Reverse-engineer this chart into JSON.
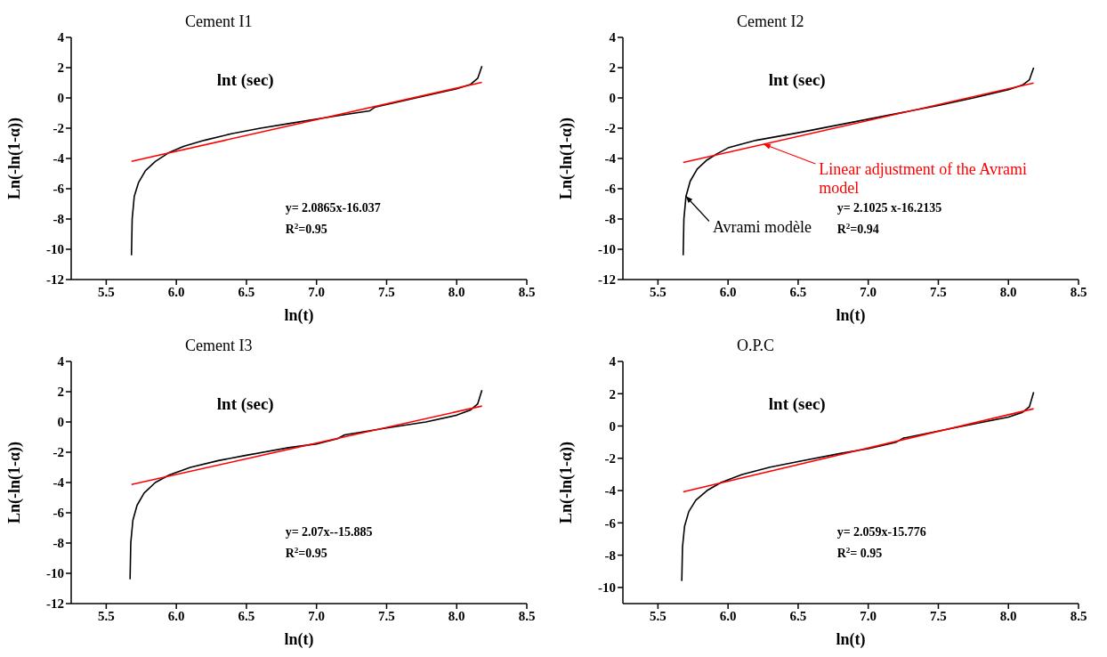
{
  "chart_data": [
    {
      "type": "line",
      "title": "Cement I1",
      "xlabel": "ln(t)",
      "ylabel": "Ln(-ln(1-α))",
      "xlim": [
        5.25,
        8.5
      ],
      "xticks": [
        5.5,
        {
          "value": 6,
          "label": "6.0"
        },
        6.5,
        {
          "value": 7,
          "label": "7.0"
        },
        7.5,
        {
          "value": 8,
          "label": "8.0"
        },
        8.5
      ],
      "ylim": [
        -12,
        4
      ],
      "yticks": [
        -12,
        -10,
        -8,
        -6,
        -4,
        -2,
        0,
        2,
        4
      ],
      "marker": "none",
      "line_style": "solid",
      "annotations": [
        "lnt (sec)",
        "y= 2.0865x-16.037",
        "R$^{2}$=0.95"
      ],
      "series": [
        {
          "color": "#000000",
          "x": [
            5.68,
            5.685,
            5.7,
            5.73,
            5.78,
            5.85,
            5.95,
            6.05,
            6.2,
            6.4,
            6.6,
            6.8,
            7.0,
            7.2,
            7.38,
            7.42,
            7.8,
            8.0,
            8.1,
            8.15,
            8.18
          ],
          "values": [
            -10.4,
            -8,
            -6.5,
            -5.6,
            -4.8,
            -4.2,
            -3.6,
            -3.2,
            -2.8,
            -2.35,
            -2,
            -1.7,
            -1.4,
            -1.1,
            -0.85,
            -0.6,
            0.2,
            0.6,
            0.9,
            1.3,
            2.1
          ]
        },
        {
          "color": "#ff0000",
          "x": [
            5.68,
            8.18
          ],
          "values": [
            -4.19,
            1.03
          ]
        }
      ]
    },
    {
      "type": "line",
      "title": "Cement I2",
      "xlabel": "ln(t)",
      "ylabel": "Ln(-ln(1-α))",
      "xlim": [
        5.25,
        8.5
      ],
      "xticks": [
        5.5,
        {
          "value": 6,
          "label": "6.0"
        },
        6.5,
        {
          "value": 7,
          "label": "7.0"
        },
        7.5,
        {
          "value": 8,
          "label": "8.0"
        },
        8.5
      ],
      "ylim": [
        -12,
        4
      ],
      "yticks": [
        -12,
        -10,
        -8,
        -6,
        -4,
        -2,
        0,
        2,
        4
      ],
      "marker": "none",
      "line_style": "solid",
      "annotations": [
        "lnt (sec)",
        "y= 2.1025 x-16.2135",
        "R$^{2}$=0.94"
      ],
      "series": [
        {
          "name": "Avrami modèle",
          "color": "#000000",
          "x": [
            5.68,
            5.685,
            5.7,
            5.73,
            5.78,
            5.85,
            5.92,
            6.0,
            6.2,
            6.5,
            7.5,
            7.75,
            8.0,
            8.1,
            8.15,
            8.18
          ],
          "values": [
            -10.4,
            -8,
            -6.5,
            -5.5,
            -4.7,
            -4.1,
            -3.7,
            -3.3,
            -2.8,
            -2.3,
            -0.5,
            0,
            0.55,
            0.85,
            1.2,
            2
          ]
        },
        {
          "name": "Linear adjustment of the Avrami model",
          "color": "#ff0000",
          "x": [
            5.68,
            8.18
          ],
          "values": [
            -4.27,
            0.99
          ]
        }
      ]
    },
    {
      "type": "line",
      "title": "Cement I3",
      "xlabel": "ln(t)",
      "ylabel": "Ln(-ln(1-α))",
      "xlim": [
        5.25,
        8.5
      ],
      "xticks": [
        5.5,
        {
          "value": 6,
          "label": "6.0"
        },
        6.5,
        {
          "value": 7,
          "label": "7.0"
        },
        7.5,
        {
          "value": 8,
          "label": "8.0"
        },
        8.5
      ],
      "ylim": [
        -12,
        4
      ],
      "yticks": [
        -12,
        -10,
        -8,
        -6,
        -4,
        -2,
        0,
        2,
        4
      ],
      "marker": "none",
      "line_style": "solid",
      "annotations": [
        "lnt (sec)",
        "y= 2.07x--15.885",
        "R$^{2}$=0.95"
      ],
      "series": [
        {
          "color": "#000000",
          "x": [
            5.67,
            5.675,
            5.69,
            5.72,
            5.77,
            5.85,
            5.95,
            6.1,
            6.3,
            6.5,
            6.8,
            7.0,
            7.15,
            7.2,
            7.5,
            7.78,
            8.0,
            8.1,
            8.15,
            8.18
          ],
          "values": [
            -10.4,
            -8,
            -6.5,
            -5.5,
            -4.7,
            -4.0,
            -3.5,
            -3.0,
            -2.55,
            -2.2,
            -1.7,
            -1.45,
            -1.1,
            -0.85,
            -0.4,
            0,
            0.45,
            0.8,
            1.2,
            2.1
          ]
        },
        {
          "color": "#ff0000",
          "x": [
            5.68,
            8.18
          ],
          "values": [
            -4.13,
            1.05
          ]
        }
      ]
    },
    {
      "type": "line",
      "title": "O.P.C",
      "xlabel": "ln(t)",
      "ylabel": "Ln(-ln(1-α))",
      "xlim": [
        5.25,
        8.5
      ],
      "xticks": [
        5.5,
        {
          "value": 6,
          "label": "6.0"
        },
        6.5,
        {
          "value": 7,
          "label": "7.0"
        },
        7.5,
        {
          "value": 8,
          "label": "8.0"
        },
        8.5
      ],
      "ylim": [
        -11,
        4
      ],
      "yticks": [
        -10,
        -8,
        -6,
        -4,
        -2,
        0,
        2,
        4
      ],
      "marker": "none",
      "line_style": "solid",
      "annotations": [
        "lnt (sec)",
        "y= 2.059x-15.776",
        "R$^{2}$= 0.95"
      ],
      "series": [
        {
          "color": "#000000",
          "x": [
            5.67,
            5.675,
            5.69,
            5.72,
            5.77,
            5.85,
            5.95,
            6.1,
            6.3,
            6.5,
            6.8,
            7.0,
            7.2,
            7.25,
            7.68,
            8.0,
            8.1,
            8.15,
            8.18
          ],
          "values": [
            -9.6,
            -7.5,
            -6.2,
            -5.3,
            -4.6,
            -4.0,
            -3.5,
            -3.0,
            -2.55,
            -2.2,
            -1.7,
            -1.4,
            -1.0,
            -0.75,
            0,
            0.55,
            0.85,
            1.2,
            2.1
          ]
        },
        {
          "color": "#ff0000",
          "x": [
            5.68,
            8.18
          ],
          "values": [
            -4.08,
            1.07
          ]
        }
      ]
    }
  ]
}
